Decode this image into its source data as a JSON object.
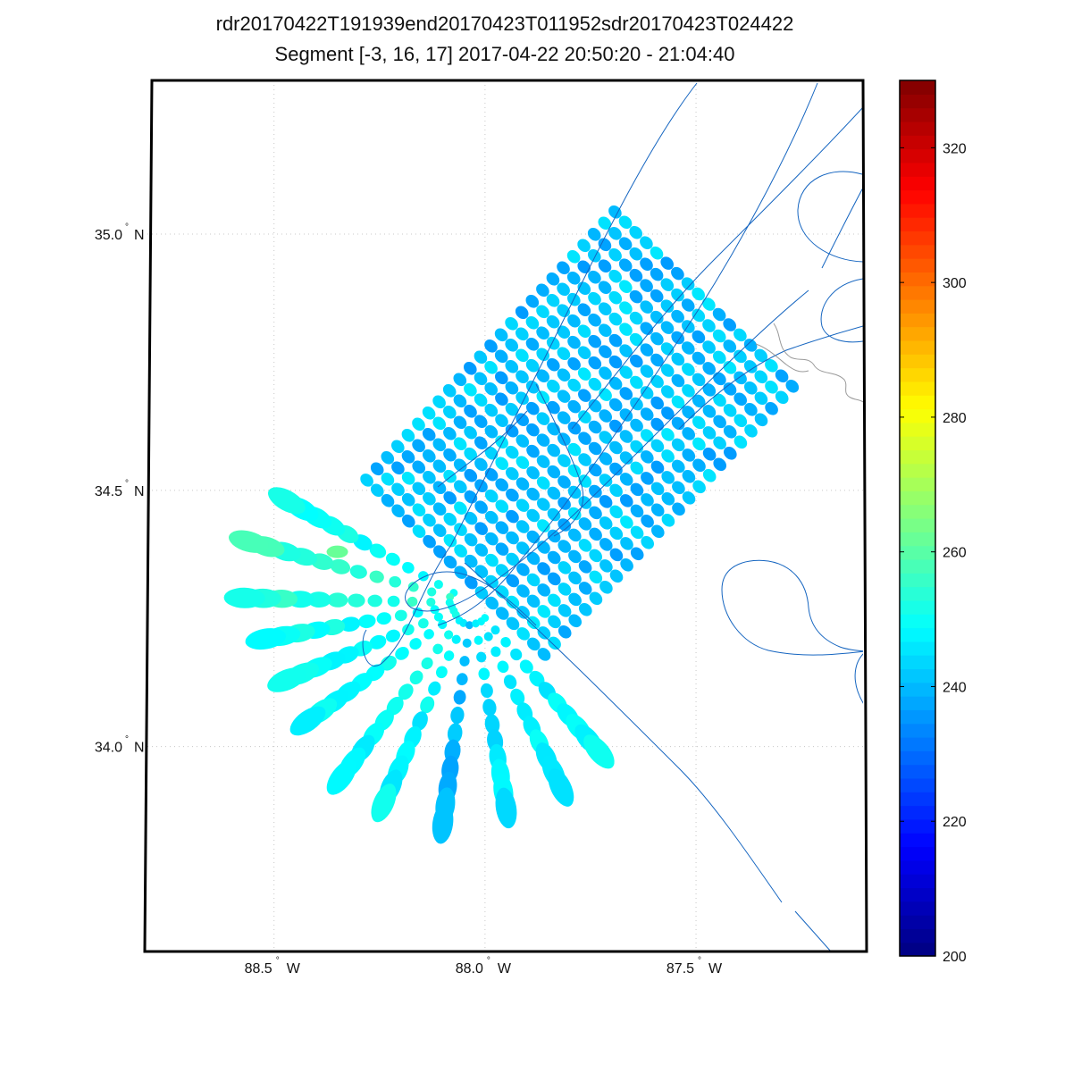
{
  "title": "rdr20170422T191939end20170423T011952sdr20170423T024422",
  "subtitle": "Segment [-3, 16, 17] 2017-04-22 20:50:20 - 21:04:40",
  "chart_data": {
    "type": "scatter",
    "title": "rdr20170422T191939end20170423T011952sdr20170423T024422",
    "subtitle": "Segment [-3, 16, 17] 2017-04-22 20:50:20 - 21:04:40",
    "xlim": [
      -88.8,
      -87.1
    ],
    "ylim": [
      33.6,
      35.3
    ],
    "x_ticks": [
      {
        "value": -88.5,
        "num": "88.5",
        "hemi": "W"
      },
      {
        "value": -88.0,
        "num": "88.0",
        "hemi": "W"
      },
      {
        "value": -87.5,
        "num": "87.5",
        "hemi": "W"
      }
    ],
    "y_ticks": [
      {
        "value": 35.0,
        "num": "35.0",
        "hemi": "N"
      },
      {
        "value": 34.5,
        "num": "34.5",
        "hemi": "N"
      },
      {
        "value": 34.0,
        "num": "34.0",
        "hemi": "N"
      }
    ],
    "grid": true,
    "colorbar": {
      "min": 200,
      "max": 330,
      "ticks": [
        200,
        220,
        240,
        260,
        280,
        300,
        320
      ],
      "colormap": "jet",
      "position": "right"
    },
    "scan_swath": {
      "description_free": true,
      "rows": 25,
      "cols": 18,
      "corner_start_first_row": [
        -88.28,
        34.52
      ],
      "corner_end_first_row": [
        -87.86,
        34.18
      ],
      "row_step": [
        0.0245,
        0.0218
      ],
      "typical_value": 241
    },
    "fan_rays": [
      {
        "end": [
          -88.47,
          34.48
        ],
        "value": 250
      },
      {
        "end": [
          -88.56,
          34.4
        ],
        "value": 255
      },
      {
        "end": [
          -88.57,
          34.29
        ],
        "value": 253
      },
      {
        "end": [
          -88.52,
          34.21
        ],
        "value": 250
      },
      {
        "end": [
          -88.47,
          34.13
        ],
        "value": 250
      },
      {
        "end": [
          -88.42,
          34.05
        ],
        "value": 249
      },
      {
        "end": [
          -88.34,
          33.94
        ],
        "value": 249
      },
      {
        "end": [
          -88.24,
          33.89
        ],
        "value": 248
      },
      {
        "end": [
          -88.1,
          33.85
        ],
        "value": 240
      },
      {
        "end": [
          -87.95,
          33.88
        ],
        "value": 246
      },
      {
        "end": [
          -87.82,
          33.92
        ],
        "value": 248
      },
      {
        "end": [
          -87.73,
          33.99
        ],
        "value": 248
      }
    ],
    "fan_origin": [
      -88.03,
      34.28
    ],
    "highlight_point": {
      "x": -88.35,
      "y": 34.38,
      "value": 262
    }
  }
}
